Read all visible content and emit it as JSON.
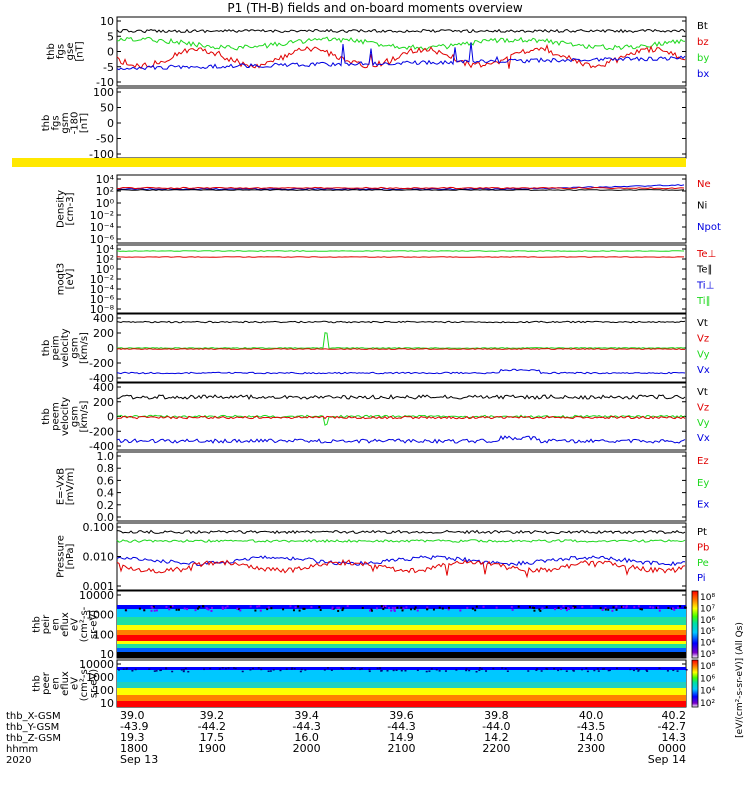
{
  "title": "P1  (TH-B) fields and on-board moments overview",
  "colors": {
    "black": "#000000",
    "red": "#e00000",
    "green": "#1ed81e",
    "blue": "#0000e0"
  },
  "panels": [
    {
      "id": "fgs-gse",
      "ylabel": [
        "thb",
        "fgs",
        "gse",
        "[nT]"
      ],
      "yticks": [
        "10",
        "5",
        "0",
        "-5",
        "-10"
      ],
      "legend": [
        {
          "t": "Bt",
          "c": "black"
        },
        {
          "t": "bz",
          "c": "red"
        },
        {
          "t": "by",
          "c": "green"
        },
        {
          "t": "bx",
          "c": "blue"
        }
      ]
    },
    {
      "id": "fgs-gsm",
      "ylabel": [
        "thb",
        "fgs",
        "gsm",
        "-180",
        "[nT]"
      ],
      "yticks": [
        "100",
        "50",
        "0",
        "-50",
        "-100"
      ],
      "legend": []
    },
    {
      "id": "density",
      "ylabel": [
        "Density",
        "[cm-3]"
      ],
      "yticks": [
        "10⁴",
        "10²",
        "10⁰",
        "10⁻²",
        "10⁻⁴",
        "10⁻⁶"
      ],
      "legend": [
        {
          "t": "Ne",
          "c": "red"
        },
        {
          "t": "Ni",
          "c": "black"
        },
        {
          "t": "Npot",
          "c": "blue"
        }
      ]
    },
    {
      "id": "temperature",
      "ylabel": [
        "moqt3",
        "[eV]"
      ],
      "yticks": [
        "10⁴",
        "10²",
        "10⁰",
        "10⁻²",
        "10⁻⁴",
        "10⁻⁶",
        "10⁻⁸"
      ],
      "legend": [
        {
          "t": "Te⊥",
          "c": "red"
        },
        {
          "t": "Te∥",
          "c": "black"
        },
        {
          "t": "Ti⊥",
          "c": "blue"
        },
        {
          "t": "Ti∥",
          "c": "green"
        }
      ]
    },
    {
      "id": "peim-velocity",
      "ylabel": [
        "thb",
        "peim",
        "velocity",
        "gsm",
        "[km/s]"
      ],
      "yticks": [
        "400",
        "200",
        "0",
        "-200",
        "-400"
      ],
      "legend": [
        {
          "t": "Vt",
          "c": "black"
        },
        {
          "t": "Vz",
          "c": "red"
        },
        {
          "t": "Vy",
          "c": "green"
        },
        {
          "t": "Vx",
          "c": "blue"
        }
      ]
    },
    {
      "id": "peem-velocity",
      "ylabel": [
        "thb",
        "peem",
        "velocity",
        "gsm",
        "[km/s]"
      ],
      "yticks": [
        "400",
        "200",
        "0",
        "-200",
        "-400"
      ],
      "legend": [
        {
          "t": "Vt",
          "c": "black"
        },
        {
          "t": "Vz",
          "c": "red"
        },
        {
          "t": "Vy",
          "c": "green"
        },
        {
          "t": "Vx",
          "c": "blue"
        }
      ]
    },
    {
      "id": "e-field",
      "ylabel": [
        "E=-VxB",
        "[mV/m]"
      ],
      "yticks": [
        "1.0",
        "0.8",
        "0.6",
        "0.4",
        "0.2",
        "0.0"
      ],
      "legend": [
        {
          "t": "Ez",
          "c": "red"
        },
        {
          "t": "Ey",
          "c": "green"
        },
        {
          "t": "Ex",
          "c": "blue"
        }
      ]
    },
    {
      "id": "pressure",
      "ylabel": [
        "Pressure",
        "[nPa]"
      ],
      "yticks": [
        "0.100",
        "0.010",
        "0.001"
      ],
      "legend": [
        {
          "t": "Pt",
          "c": "black"
        },
        {
          "t": "Pb",
          "c": "red"
        },
        {
          "t": "Pe",
          "c": "green"
        },
        {
          "t": "Pi",
          "c": "blue"
        }
      ]
    },
    {
      "id": "peir-spectrogram",
      "ylabel": [
        "thb",
        "peir",
        "en",
        "eflux",
        "eV",
        "(cm²-s-",
        "sr-eV)"
      ],
      "yticks": [
        "10000",
        "1000",
        "100",
        "10"
      ],
      "legend": []
    },
    {
      "id": "peer-spectrogram",
      "ylabel": [
        "thb",
        "peer",
        "en",
        "eflux",
        "eV",
        "(cm²-s-",
        "sr-eV)"
      ],
      "yticks": [
        "10000",
        "1000",
        "100",
        "10"
      ],
      "legend": []
    }
  ],
  "colorbar": {
    "top_ticks": [
      "10⁸",
      "10⁷",
      "10⁶",
      "10⁵",
      "10⁴",
      "10³"
    ],
    "bottom_ticks": [
      "10⁸",
      "10⁶",
      "10⁴",
      "10²"
    ],
    "label": "[eV/(cm²-s-sr-eV)] (All Qs)"
  },
  "xaxis": {
    "row_labels": [
      "thb_X-GSM",
      "thb_Y-GSM",
      "thb_Z-GSM",
      "hhmm",
      "2020"
    ],
    "columns": [
      [
        "39.0",
        "-43.9",
        "19.3",
        "1800",
        "Sep 13"
      ],
      [
        "39.2",
        "-44.2",
        "17.5",
        "1900",
        ""
      ],
      [
        "39.4",
        "-44.3",
        "16.0",
        "2000",
        ""
      ],
      [
        "39.6",
        "-44.3",
        "14.9",
        "2100",
        ""
      ],
      [
        "39.8",
        "-44.0",
        "14.2",
        "2200",
        ""
      ],
      [
        "40.0",
        "-43.5",
        "14.0",
        "2300",
        ""
      ],
      [
        "40.2",
        "-42.7",
        "14.3",
        "0000",
        "Sep 14"
      ]
    ]
  },
  "chart_data": {
    "type": "line",
    "title": "P1  (TH-B) fields and on-board moments overview",
    "x": [
      "1800",
      "1900",
      "2000",
      "2100",
      "2200",
      "2300",
      "0000"
    ],
    "xlabel": "hhmm",
    "panels": [
      {
        "name": "thb fgs gse",
        "unit": "nT",
        "ylim": [
          -10,
          10
        ],
        "series": [
          {
            "name": "Bt",
            "values": [
              6,
              6,
              6,
              6,
              6,
              6,
              5
            ]
          },
          {
            "name": "bz",
            "values": [
              1,
              -1,
              1,
              -1,
              -1,
              -2,
              -2
            ]
          },
          {
            "name": "by",
            "values": [
              3,
              2,
              2,
              2,
              2,
              2,
              2
            ]
          },
          {
            "name": "bx",
            "values": [
              -4,
              -4,
              -3,
              -3,
              -2,
              -2,
              -1
            ]
          }
        ]
      },
      {
        "name": "thb fgs gsm -180",
        "unit": "nT",
        "ylim": [
          -120,
          100
        ],
        "series": []
      },
      {
        "name": "Density",
        "unit": "cm-3",
        "scale": "log",
        "ylim": [
          1e-06,
          10000.0
        ],
        "series": [
          {
            "name": "Ne",
            "values": [
              1,
              1,
              1,
              1,
              1,
              2,
              3
            ]
          },
          {
            "name": "Ni",
            "values": [
              1,
              1,
              1,
              1,
              1,
              1,
              1
            ]
          },
          {
            "name": "Npot",
            "values": [
              1,
              1,
              1,
              1,
              1,
              1,
              1
            ]
          }
        ]
      },
      {
        "name": "moqt3",
        "unit": "eV",
        "scale": "log",
        "ylim": [
          1e-08,
          10000.0
        ],
        "series": [
          {
            "name": "Te⊥",
            "values": [
              1,
              1,
              1,
              1,
              1,
              1,
              1
            ]
          },
          {
            "name": "Ti∥",
            "values": [
              300,
              300,
              300,
              300,
              300,
              300,
              300
            ]
          }
        ]
      },
      {
        "name": "thb peim velocity gsm",
        "unit": "km/s",
        "ylim": [
          -400,
          400
        ],
        "series": [
          {
            "name": "Vt",
            "values": [
              330,
              335,
              330,
              330,
              320,
              330,
              335
            ]
          },
          {
            "name": "Vz",
            "values": [
              0,
              0,
              0,
              0,
              0,
              0,
              0
            ]
          },
          {
            "name": "Vy",
            "values": [
              -10,
              -10,
              -10,
              -10,
              -10,
              -10,
              -10
            ]
          },
          {
            "name": "Vx",
            "values": [
              -330,
              -335,
              -330,
              -330,
              -320,
              -330,
              -335
            ]
          }
        ]
      },
      {
        "name": "thb peem velocity gsm",
        "unit": "km/s",
        "ylim": [
          -400,
          400
        ],
        "series": [
          {
            "name": "Vt",
            "values": [
              370,
              360,
              370,
              370,
              340,
              370,
              370
            ]
          },
          {
            "name": "Vz",
            "values": [
              0,
              0,
              0,
              0,
              0,
              0,
              0
            ]
          },
          {
            "name": "Vy",
            "values": [
              -10,
              -10,
              -10,
              -10,
              -10,
              -10,
              -10
            ]
          },
          {
            "name": "Vx",
            "values": [
              -360,
              -360,
              -370,
              -370,
              -340,
              -370,
              -370
            ]
          }
        ]
      },
      {
        "name": "E=-VxB",
        "unit": "mV/m",
        "ylim": [
          0,
          1
        ],
        "series": []
      },
      {
        "name": "Pressure",
        "unit": "nPa",
        "scale": "log",
        "ylim": [
          0.0008,
          0.15
        ],
        "series": [
          {
            "name": "Pt",
            "values": [
              0.05,
              0.05,
              0.05,
              0.05,
              0.055,
              0.05,
              0.05
            ]
          },
          {
            "name": "Pb",
            "values": [
              0.012,
              0.01,
              0.009,
              0.009,
              0.011,
              0.008,
              0.007
            ]
          },
          {
            "name": "Pe",
            "values": [
              0.03,
              0.027,
              0.027,
              0.025,
              0.03,
              0.03,
              0.035
            ]
          },
          {
            "name": "Pi",
            "values": [
              0.011,
              0.012,
              0.011,
              0.011,
              0.013,
              0.012,
              0.012
            ]
          }
        ]
      },
      {
        "name": "thb peir en eflux",
        "type": "heatmap",
        "unit": "eV",
        "scale": "log",
        "ylim": [
          1,
          20000
        ]
      },
      {
        "name": "thb peer en eflux",
        "type": "heatmap",
        "unit": "eV",
        "scale": "log",
        "ylim": [
          5,
          20000
        ]
      }
    ]
  }
}
